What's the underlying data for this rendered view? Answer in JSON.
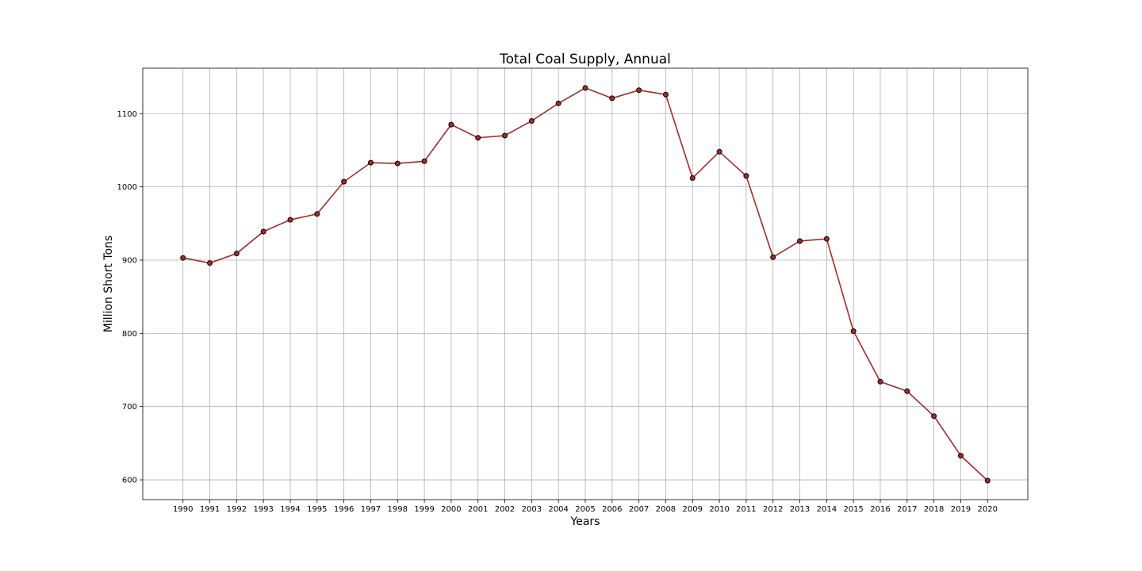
{
  "chart_data": {
    "type": "line",
    "title": "Total Coal Supply, Annual",
    "xlabel": "Years",
    "ylabel": "Million Short Tons",
    "x": [
      1990,
      1991,
      1992,
      1993,
      1994,
      1995,
      1996,
      1997,
      1998,
      1999,
      2000,
      2001,
      2002,
      2003,
      2004,
      2005,
      2006,
      2007,
      2008,
      2009,
      2010,
      2011,
      2012,
      2013,
      2014,
      2015,
      2016,
      2017,
      2018,
      2019,
      2020
    ],
    "series": [
      {
        "values": [
          903,
          896,
          909,
          939,
          955,
          963,
          1007,
          1033,
          1032,
          1035,
          1085,
          1067,
          1070,
          1090,
          1114,
          1135,
          1121,
          1132,
          1126,
          1012,
          1048,
          1015,
          904,
          926,
          929,
          803,
          734,
          721,
          687,
          633,
          599
        ],
        "color": "#a52a2a",
        "marker": "circle",
        "marker_edge_color": "#000000"
      }
    ],
    "xlim": [
      1988.5,
      2021.5
    ],
    "ylim": [
      573,
      1162
    ],
    "yticks": [
      600,
      700,
      800,
      900,
      1000,
      1100
    ],
    "grid": true
  }
}
